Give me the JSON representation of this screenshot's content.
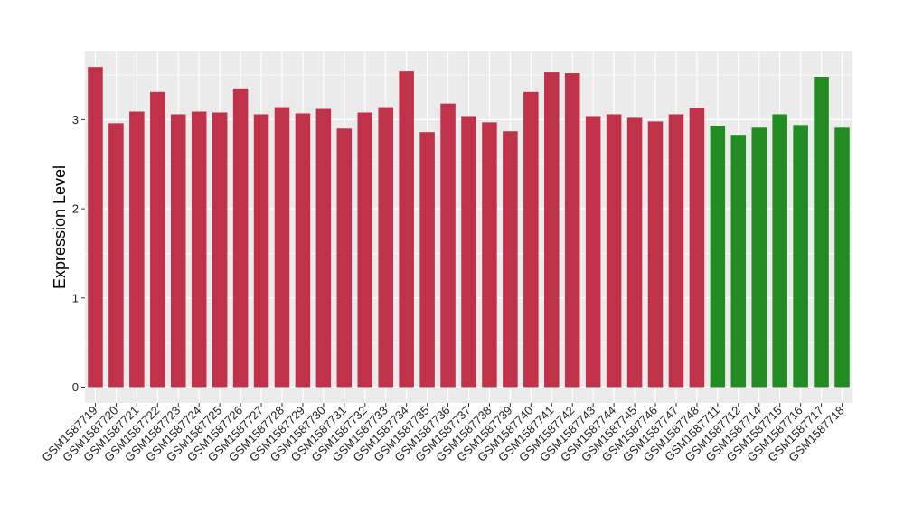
{
  "chart_data": {
    "type": "bar",
    "title": "",
    "xlabel": "",
    "ylabel": "Expression Level",
    "ylim": [
      0,
      3.7
    ],
    "yticks": [
      0,
      1,
      2,
      3
    ],
    "grid": true,
    "legend": "none",
    "panel_color": "#ebebeb",
    "grid_color": "#ffffff",
    "categories": [
      "GSM1587719",
      "GSM1587720",
      "GSM1587721",
      "GSM1587722",
      "GSM1587723",
      "GSM1587724",
      "GSM1587725",
      "GSM1587726",
      "GSM1587727",
      "GSM1587728",
      "GSM1587729",
      "GSM1587730",
      "GSM1587731",
      "GSM1587732",
      "GSM1587733",
      "GSM1587734",
      "GSM1587735",
      "GSM1587736",
      "GSM1587737",
      "GSM1587738",
      "GSM1587739",
      "GSM1587740",
      "GSM1587741",
      "GSM1587742",
      "GSM1587743",
      "GSM1587744",
      "GSM1587745",
      "GSM1587746",
      "GSM1587747",
      "GSM1587748",
      "GSM1587711",
      "GSM1587712",
      "GSM1587714",
      "GSM1587715",
      "GSM1587716",
      "GSM1587717",
      "GSM1587718"
    ],
    "values": [
      3.59,
      2.96,
      3.09,
      3.31,
      3.06,
      3.09,
      3.08,
      3.35,
      3.06,
      3.14,
      3.07,
      3.12,
      2.9,
      3.08,
      3.14,
      3.54,
      2.86,
      3.18,
      3.04,
      2.97,
      2.87,
      3.31,
      3.53,
      3.52,
      3.04,
      3.06,
      3.02,
      2.98,
      3.06,
      3.13,
      2.93,
      2.83,
      2.91,
      3.06,
      2.94,
      3.48,
      2.91
    ],
    "colors": [
      "#c0314a",
      "#c0314a",
      "#c0314a",
      "#c0314a",
      "#c0314a",
      "#c0314a",
      "#c0314a",
      "#c0314a",
      "#c0314a",
      "#c0314a",
      "#c0314a",
      "#c0314a",
      "#c0314a",
      "#c0314a",
      "#c0314a",
      "#c0314a",
      "#c0314a",
      "#c0314a",
      "#c0314a",
      "#c0314a",
      "#c0314a",
      "#c0314a",
      "#c0314a",
      "#c0314a",
      "#c0314a",
      "#c0314a",
      "#c0314a",
      "#c0314a",
      "#c0314a",
      "#c0314a",
      "#228b22",
      "#228b22",
      "#228b22",
      "#228b22",
      "#228b22",
      "#228b22",
      "#228b22"
    ]
  }
}
